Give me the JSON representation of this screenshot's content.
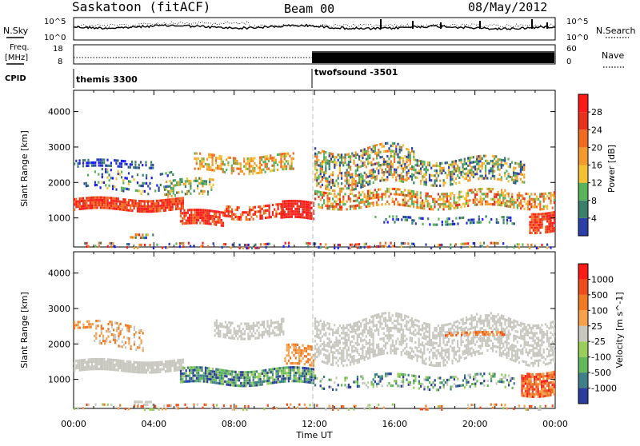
{
  "header": {
    "station": "Saskatoon (fitACF)",
    "beam": "Beam 00",
    "date": "08/May/2012"
  },
  "strip_labels": {
    "nsky": "N.Sky",
    "nsky_ticks": [
      "10^5",
      "10^0"
    ],
    "nsearch": "N.Search",
    "nsearch_ticks": [
      "10^5",
      "10^0"
    ],
    "freq": "Freq.",
    "freq_unit": "[MHz]",
    "freq_ticks": [
      "18",
      "8"
    ],
    "nave": "Nave",
    "nave_ticks": [
      "60",
      "0"
    ],
    "cpid": "CPID",
    "cpid_modes": [
      "themis 3300",
      "twofsound -3501"
    ]
  },
  "colors": {
    "power_scale": [
      "#1a1aff",
      "#2b3fa8",
      "#3a7f6a",
      "#58b35a",
      "#f2c233",
      "#f29a2e",
      "#f06a22",
      "#e8301d",
      "#ff1a1a"
    ],
    "velocity_scale": [
      "#2a3d9c",
      "#3f7f88",
      "#63b85a",
      "#9acd5a",
      "#c8c8c0",
      "#f5a04a",
      "#f07a24",
      "#ee4b1c",
      "#ff1a1a"
    ]
  },
  "chart_data": [
    {
      "type": "heatmap",
      "title": "Power",
      "ylabel": "Slant Range [km]",
      "ylim": [
        180,
        4600
      ],
      "xlabel": "Time UT",
      "x_ticks": [
        "00:00",
        "04:00",
        "08:00",
        "12:00",
        "16:00",
        "20:00",
        "00:00"
      ],
      "y_ticks": [
        1000,
        2000,
        3000,
        4000
      ],
      "colorbar": {
        "label": "Power [dB]",
        "ticks": [
          4,
          8,
          12,
          16,
          20,
          24,
          28
        ]
      }
    },
    {
      "type": "heatmap",
      "title": "Velocity",
      "ylabel": "Slant Range [km]",
      "ylim": [
        180,
        4600
      ],
      "xlabel": "Time UT",
      "x_ticks": [
        "00:00",
        "04:00",
        "08:00",
        "12:00",
        "16:00",
        "20:00",
        "00:00"
      ],
      "y_ticks": [
        1000,
        2000,
        3000,
        4000
      ],
      "colorbar": {
        "label": "Velocity [m s^-1]",
        "ticks": [
          1000,
          500,
          100,
          25,
          -25,
          -100,
          -500,
          -1000
        ]
      }
    }
  ]
}
